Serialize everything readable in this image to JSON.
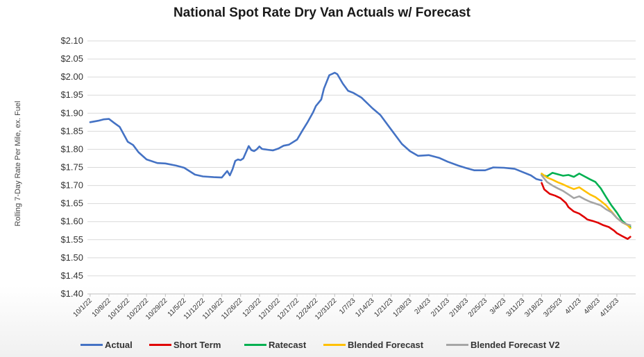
{
  "chart_data": {
    "type": "line",
    "title": "National Spot Rate Dry Van Actuals w/ Forecast",
    "ylabel": "Rolling 7-Day Rate Per Mile, ex. Fuel",
    "xlabel": "",
    "ylim": [
      1.4,
      2.1
    ],
    "yticks": [
      2.1,
      2.05,
      2.0,
      1.95,
      1.9,
      1.85,
      1.8,
      1.75,
      1.7,
      1.65,
      1.6,
      1.55,
      1.5,
      1.45,
      1.4
    ],
    "ytick_labels": [
      "$2.10",
      "$2.05",
      "$2.00",
      "$1.95",
      "$1.90",
      "$1.85",
      "$1.80",
      "$1.75",
      "$1.70",
      "$1.65",
      "$1.60",
      "$1.55",
      "$1.50",
      "$1.45",
      "$1.40"
    ],
    "grid": true,
    "legend": "bottom",
    "x_tick_labels": [
      "10/1/22",
      "10/8/22",
      "10/15/22",
      "10/22/22",
      "10/29/22",
      "11/5/22",
      "11/12/22",
      "11/19/22",
      "11/26/22",
      "12/3/22",
      "12/10/22",
      "12/17/22",
      "12/24/22",
      "12/31/22",
      "1/7/23",
      "1/14/23",
      "1/21/23",
      "1/28/23",
      "2/4/23",
      "2/11/23",
      "2/18/23",
      "2/25/23",
      "3/4/23",
      "3/11/23",
      "3/18/23",
      "3/25/23",
      "4/1/23",
      "4/8/23",
      "4/15/23"
    ],
    "series": [
      {
        "name": "Actual",
        "color": "#4472C4",
        "x": [
          "10/1/22",
          "10/4/22",
          "10/6/22",
          "10/8/22",
          "10/10/22",
          "10/12/22",
          "10/15/22",
          "10/17/22",
          "10/19/22",
          "10/22/22",
          "10/26/22",
          "10/29/22",
          "11/2/22",
          "11/5/22",
          "11/9/22",
          "11/12/22",
          "11/16/22",
          "11/19/22",
          "11/21/22",
          "11/22/22",
          "11/23/22",
          "11/24/22",
          "11/25/22",
          "11/26/22",
          "11/27/22",
          "11/29/22",
          "11/30/22",
          "12/1/22",
          "12/2/22",
          "12/3/22",
          "12/4/22",
          "12/6/22",
          "12/8/22",
          "12/10/22",
          "12/12/22",
          "12/14/22",
          "12/17/22",
          "12/19/22",
          "12/21/22",
          "12/23/22",
          "12/24/22",
          "12/26/22",
          "12/27/22",
          "12/29/22",
          "12/31/22",
          "1/1/23",
          "1/3/23",
          "1/5/23",
          "1/7/23",
          "1/10/23",
          "1/14/23",
          "1/17/23",
          "1/21/23",
          "1/25/23",
          "1/28/23",
          "1/31/23",
          "2/4/23",
          "2/8/23",
          "2/11/23",
          "2/15/23",
          "2/18/23",
          "2/21/23",
          "2/25/23",
          "2/28/23",
          "3/4/23",
          "3/8/23",
          "3/11/23",
          "3/14/23",
          "3/16/23",
          "3/18/23"
        ],
        "values": [
          1.875,
          1.879,
          1.883,
          1.884,
          1.873,
          1.862,
          1.821,
          1.812,
          1.792,
          1.772,
          1.762,
          1.761,
          1.755,
          1.749,
          1.73,
          1.725,
          1.723,
          1.722,
          1.74,
          1.728,
          1.745,
          1.768,
          1.772,
          1.77,
          1.775,
          1.809,
          1.798,
          1.795,
          1.8,
          1.808,
          1.801,
          1.799,
          1.797,
          1.802,
          1.81,
          1.813,
          1.827,
          1.852,
          1.876,
          1.903,
          1.92,
          1.938,
          1.968,
          2.005,
          2.012,
          2.008,
          1.982,
          1.962,
          1.956,
          1.943,
          1.914,
          1.895,
          1.855,
          1.815,
          1.795,
          1.782,
          1.784,
          1.776,
          1.766,
          1.755,
          1.748,
          1.742,
          1.742,
          1.75,
          1.749,
          1.746,
          1.737,
          1.728,
          1.718,
          1.714
        ]
      },
      {
        "name": "Short Term",
        "color": "#E00000",
        "x": [
          "3/18/23",
          "3/19/23",
          "3/21/23",
          "3/23/23",
          "3/25/23",
          "3/27/23",
          "3/28/23",
          "3/30/23",
          "4/1/23",
          "4/3/23",
          "4/4/23",
          "4/6/23",
          "4/8/23",
          "4/10/23",
          "4/12/23",
          "4/14/23",
          "4/15/23",
          "4/17/23",
          "4/19/23",
          "4/20/23"
        ],
        "values": [
          1.707,
          1.689,
          1.677,
          1.672,
          1.665,
          1.652,
          1.64,
          1.628,
          1.622,
          1.612,
          1.606,
          1.602,
          1.597,
          1.59,
          1.585,
          1.575,
          1.568,
          1.56,
          1.552,
          1.558
        ]
      },
      {
        "name": "Ratecast",
        "color": "#00B050",
        "x": [
          "3/18/23",
          "3/20/23",
          "3/22/23",
          "3/24/23",
          "3/26/23",
          "3/28/23",
          "3/30/23",
          "4/1/23",
          "4/3/23",
          "4/5/23",
          "4/7/23",
          "4/9/23",
          "4/11/23",
          "4/13/23",
          "4/15/23",
          "4/17/23",
          "4/19/23",
          "4/20/23"
        ],
        "values": [
          1.73,
          1.725,
          1.735,
          1.731,
          1.727,
          1.729,
          1.724,
          1.733,
          1.725,
          1.717,
          1.71,
          1.692,
          1.668,
          1.645,
          1.625,
          1.602,
          1.59,
          1.585
        ]
      },
      {
        "name": "Blended Forecast",
        "color": "#FFC000",
        "x": [
          "3/18/23",
          "3/20/23",
          "3/22/23",
          "3/24/23",
          "3/26/23",
          "3/28/23",
          "3/30/23",
          "4/1/23",
          "4/3/23",
          "4/5/23",
          "4/7/23",
          "4/9/23",
          "4/11/23",
          "4/13/23",
          "4/15/23",
          "4/17/23",
          "4/19/23",
          "4/20/23"
        ],
        "values": [
          1.733,
          1.722,
          1.716,
          1.709,
          1.703,
          1.696,
          1.69,
          1.695,
          1.685,
          1.675,
          1.668,
          1.657,
          1.645,
          1.628,
          1.61,
          1.598,
          1.59,
          1.582
        ]
      },
      {
        "name": "Blended Forecast V2",
        "color": "#A5A5A5",
        "x": [
          "3/18/23",
          "3/20/23",
          "3/22/23",
          "3/24/23",
          "3/26/23",
          "3/28/23",
          "3/30/23",
          "4/1/23",
          "4/3/23",
          "4/5/23",
          "4/7/23",
          "4/9/23",
          "4/11/23",
          "4/13/23",
          "4/15/23",
          "4/17/23",
          "4/19/23",
          "4/20/23"
        ],
        "values": [
          1.728,
          1.71,
          1.7,
          1.692,
          1.685,
          1.675,
          1.665,
          1.67,
          1.662,
          1.655,
          1.65,
          1.645,
          1.634,
          1.626,
          1.61,
          1.598,
          1.592,
          1.59
        ]
      }
    ]
  }
}
